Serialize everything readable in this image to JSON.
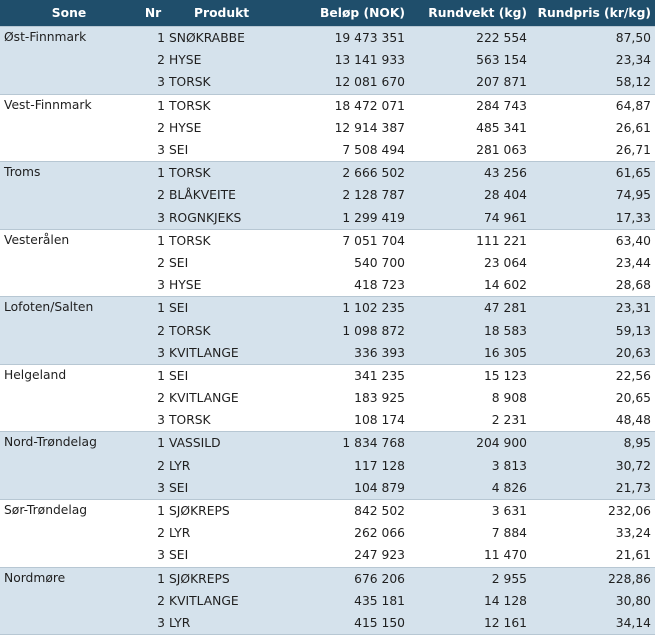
{
  "headers": {
    "sone": "Sone",
    "nr": "Nr",
    "produkt": "Produkt",
    "belop": "Beløp (NOK)",
    "rundvekt": "Rundvekt (kg)",
    "rundpris": "Rundpris (kr/kg)"
  },
  "groups": [
    {
      "sone": "Øst-Finnmark",
      "rows": [
        {
          "nr": "1",
          "produkt": "SNØKRABBE",
          "belop": "19 473 351",
          "rundvekt": "222 554",
          "rundpris": "87,50"
        },
        {
          "nr": "2",
          "produkt": "HYSE",
          "belop": "13 141 933",
          "rundvekt": "563 154",
          "rundpris": "23,34"
        },
        {
          "nr": "3",
          "produkt": "TORSK",
          "belop": "12 081 670",
          "rundvekt": "207 871",
          "rundpris": "58,12"
        }
      ]
    },
    {
      "sone": "Vest-Finnmark",
      "rows": [
        {
          "nr": "1",
          "produkt": "TORSK",
          "belop": "18 472 071",
          "rundvekt": "284 743",
          "rundpris": "64,87"
        },
        {
          "nr": "2",
          "produkt": "HYSE",
          "belop": "12 914 387",
          "rundvekt": "485 341",
          "rundpris": "26,61"
        },
        {
          "nr": "3",
          "produkt": "SEI",
          "belop": "7 508 494",
          "rundvekt": "281 063",
          "rundpris": "26,71"
        }
      ]
    },
    {
      "sone": "Troms",
      "rows": [
        {
          "nr": "1",
          "produkt": "TORSK",
          "belop": "2 666 502",
          "rundvekt": "43 256",
          "rundpris": "61,65"
        },
        {
          "nr": "2",
          "produkt": "BLÅKVEITE",
          "belop": "2 128 787",
          "rundvekt": "28 404",
          "rundpris": "74,95"
        },
        {
          "nr": "3",
          "produkt": "ROGNKJEKS",
          "belop": "1 299 419",
          "rundvekt": "74 961",
          "rundpris": "17,33"
        }
      ]
    },
    {
      "sone": "Vesterålen",
      "rows": [
        {
          "nr": "1",
          "produkt": "TORSK",
          "belop": "7 051 704",
          "rundvekt": "111 221",
          "rundpris": "63,40"
        },
        {
          "nr": "2",
          "produkt": "SEI",
          "belop": "540 700",
          "rundvekt": "23 064",
          "rundpris": "23,44"
        },
        {
          "nr": "3",
          "produkt": "HYSE",
          "belop": "418 723",
          "rundvekt": "14 602",
          "rundpris": "28,68"
        }
      ]
    },
    {
      "sone": "Lofoten/Salten",
      "rows": [
        {
          "nr": "1",
          "produkt": "SEI",
          "belop": "1 102 235",
          "rundvekt": "47 281",
          "rundpris": "23,31"
        },
        {
          "nr": "2",
          "produkt": "TORSK",
          "belop": "1 098 872",
          "rundvekt": "18 583",
          "rundpris": "59,13"
        },
        {
          "nr": "3",
          "produkt": "KVITLANGE",
          "belop": "336 393",
          "rundvekt": "16 305",
          "rundpris": "20,63"
        }
      ]
    },
    {
      "sone": "Helgeland",
      "rows": [
        {
          "nr": "1",
          "produkt": "SEI",
          "belop": "341 235",
          "rundvekt": "15 123",
          "rundpris": "22,56"
        },
        {
          "nr": "2",
          "produkt": "KVITLANGE",
          "belop": "183 925",
          "rundvekt": "8 908",
          "rundpris": "20,65"
        },
        {
          "nr": "3",
          "produkt": "TORSK",
          "belop": "108 174",
          "rundvekt": "2 231",
          "rundpris": "48,48"
        }
      ]
    },
    {
      "sone": "Nord-Trøndelag",
      "rows": [
        {
          "nr": "1",
          "produkt": "VASSILD",
          "belop": "1 834 768",
          "rundvekt": "204 900",
          "rundpris": "8,95"
        },
        {
          "nr": "2",
          "produkt": "LYR",
          "belop": "117 128",
          "rundvekt": "3 813",
          "rundpris": "30,72"
        },
        {
          "nr": "3",
          "produkt": "SEI",
          "belop": "104 879",
          "rundvekt": "4 826",
          "rundpris": "21,73"
        }
      ]
    },
    {
      "sone": "Sør-Trøndelag",
      "rows": [
        {
          "nr": "1",
          "produkt": "SJØKREPS",
          "belop": "842 502",
          "rundvekt": "3 631",
          "rundpris": "232,06"
        },
        {
          "nr": "2",
          "produkt": "LYR",
          "belop": "262 066",
          "rundvekt": "7 884",
          "rundpris": "33,24"
        },
        {
          "nr": "3",
          "produkt": "SEI",
          "belop": "247 923",
          "rundvekt": "11 470",
          "rundpris": "21,61"
        }
      ]
    },
    {
      "sone": "Nordmøre",
      "rows": [
        {
          "nr": "1",
          "produkt": "SJØKREPS",
          "belop": "676 206",
          "rundvekt": "2 955",
          "rundpris": "228,86"
        },
        {
          "nr": "2",
          "produkt": "KVITLANGE",
          "belop": "435 181",
          "rundvekt": "14 128",
          "rundpris": "30,80"
        },
        {
          "nr": "3",
          "produkt": "LYR",
          "belop": "415 150",
          "rundvekt": "12 161",
          "rundpris": "34,14"
        }
      ]
    }
  ]
}
